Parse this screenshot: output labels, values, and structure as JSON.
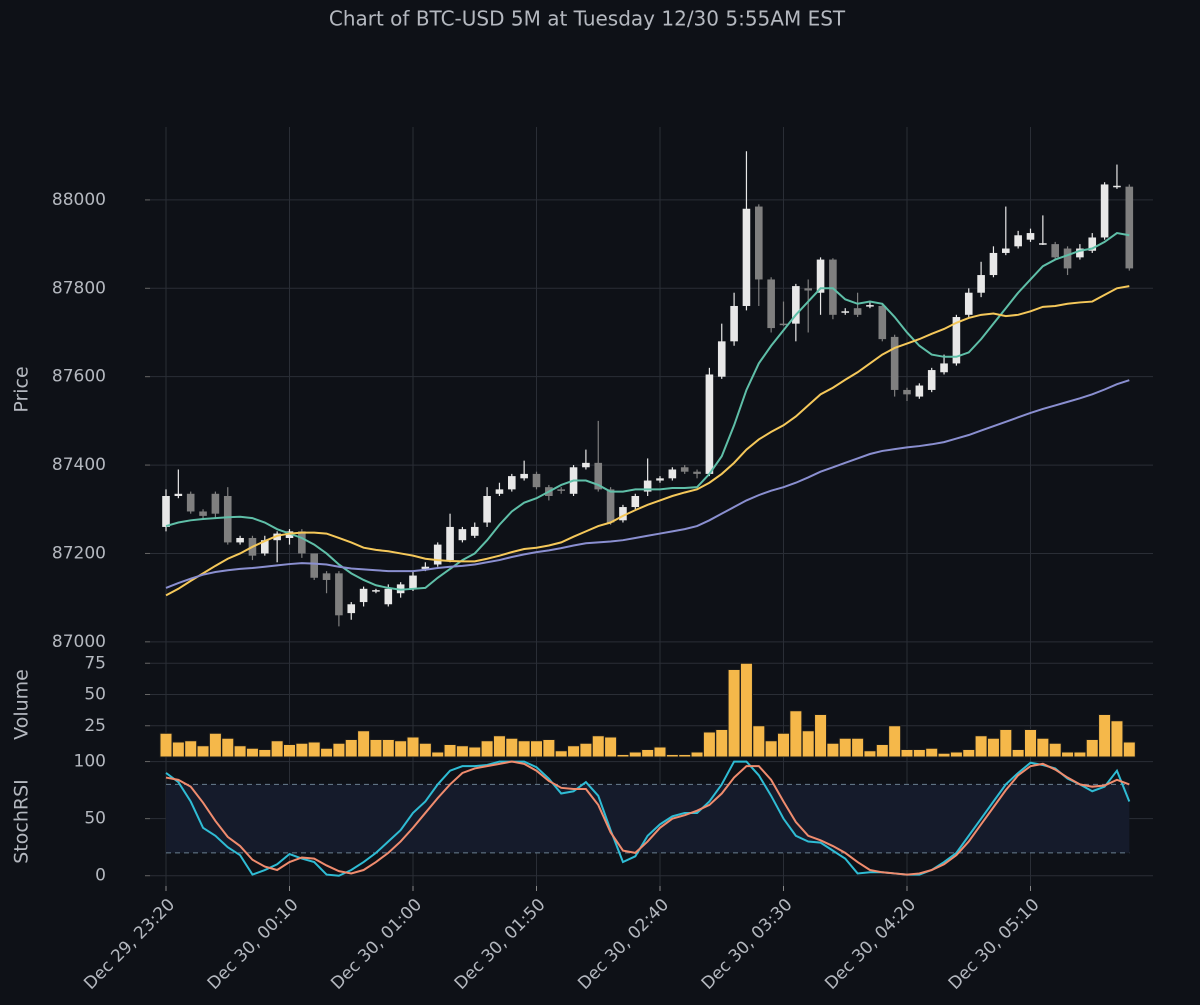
{
  "chart_data": [
    {
      "type": "candlestick",
      "title": "Chart of BTC-USD 5M at Tuesday 12/30 5:55AM EST",
      "ylabel": "Price",
      "ylim": [
        86977,
        88165
      ],
      "yticks": [
        87000,
        87200,
        87400,
        87600,
        87800,
        88000
      ],
      "grid": true,
      "up_color": "#e8e8e8",
      "down_color": "#7f7f7f",
      "open": [
        87260,
        87330,
        87335,
        87295,
        87335,
        87330,
        87225,
        87235,
        87200,
        87230,
        87235,
        87250,
        87200,
        87155,
        87155,
        87065,
        87090,
        87115,
        87085,
        87110,
        87120,
        87165,
        87175,
        87185,
        87230,
        87240,
        87270,
        87335,
        87345,
        87370,
        87380,
        87350,
        87345,
        87335,
        87395,
        87405,
        87345,
        87275,
        87305,
        87340,
        87365,
        87370,
        87395,
        87385,
        87380,
        87600,
        87680,
        87760,
        87985,
        87820,
        87720,
        87720,
        87800,
        87790,
        87865,
        87745,
        87755,
        87760,
        87760,
        87690,
        87570,
        87555,
        87570,
        87610,
        87630,
        87740,
        87790,
        87830,
        87880,
        87895,
        87910,
        87900,
        87900,
        87890,
        87870,
        87885,
        87915,
        88030,
        88030
      ],
      "high": [
        87345,
        87390,
        87340,
        87300,
        87340,
        87350,
        87240,
        87240,
        87240,
        87250,
        87255,
        87255,
        87200,
        87160,
        87160,
        87090,
        87125,
        87120,
        87130,
        87135,
        87160,
        87180,
        87225,
        87290,
        87260,
        87270,
        87350,
        87360,
        87380,
        87410,
        87385,
        87355,
        87350,
        87400,
        87435,
        87500,
        87350,
        87310,
        87335,
        87415,
        87375,
        87395,
        87400,
        87390,
        87620,
        87720,
        87790,
        88110,
        87990,
        87825,
        87770,
        87810,
        87820,
        87870,
        87868,
        87755,
        87790,
        87770,
        87765,
        87695,
        87575,
        87585,
        87620,
        87650,
        87740,
        87800,
        87860,
        87895,
        87985,
        87930,
        87935,
        87965,
        87905,
        87895,
        87900,
        87925,
        88040,
        88080,
        88035
      ],
      "low": [
        87250,
        87325,
        87290,
        87280,
        87280,
        87220,
        87220,
        87185,
        87195,
        87180,
        87220,
        87190,
        87140,
        87110,
        87035,
        87050,
        87080,
        87110,
        87080,
        87100,
        87115,
        87160,
        87170,
        87180,
        87225,
        87235,
        87260,
        87330,
        87340,
        87365,
        87345,
        87320,
        87335,
        87330,
        87390,
        87340,
        87265,
        87270,
        87300,
        87330,
        87360,
        87365,
        87380,
        87370,
        87375,
        87595,
        87670,
        87750,
        87760,
        87700,
        87715,
        87680,
        87700,
        87740,
        87730,
        87740,
        87735,
        87755,
        87680,
        87555,
        87545,
        87550,
        87565,
        87605,
        87625,
        87735,
        87780,
        87825,
        87875,
        87890,
        87905,
        87898,
        87865,
        87830,
        87865,
        87880,
        87910,
        88025,
        87840
      ],
      "close": [
        87330,
        87335,
        87295,
        87285,
        87290,
        87225,
        87235,
        87195,
        87230,
        87245,
        87250,
        87200,
        87145,
        87140,
        87060,
        87085,
        87120,
        87117,
        87120,
        87130,
        87150,
        87170,
        87220,
        87260,
        87255,
        87260,
        87330,
        87345,
        87375,
        87380,
        87350,
        87330,
        87342,
        87395,
        87405,
        87345,
        87270,
        87305,
        87330,
        87365,
        87370,
        87390,
        87385,
        87380,
        87605,
        87680,
        87760,
        87980,
        87820,
        87710,
        87718,
        87805,
        87795,
        87865,
        87740,
        87748,
        87740,
        87762,
        87685,
        87570,
        87560,
        87580,
        87615,
        87630,
        87735,
        87790,
        87830,
        87880,
        87890,
        87920,
        87925,
        87902,
        87870,
        87845,
        87890,
        87915,
        88035,
        88032,
        87845
      ],
      "series": [
        {
          "color": "#5fbfa8",
          "values": [
            87262,
            87270,
            87275,
            87278,
            87280,
            87282,
            87283,
            87280,
            87270,
            87255,
            87245,
            87235,
            87220,
            87200,
            87175,
            87155,
            87140,
            87128,
            87122,
            87118,
            87120,
            87122,
            87145,
            87165,
            87185,
            87200,
            87230,
            87265,
            87295,
            87315,
            87325,
            87340,
            87355,
            87365,
            87365,
            87355,
            87340,
            87340,
            87345,
            87345,
            87345,
            87348,
            87348,
            87350,
            87380,
            87420,
            87490,
            87570,
            87630,
            87670,
            87705,
            87740,
            87770,
            87800,
            87800,
            87775,
            87765,
            87770,
            87765,
            87735,
            87700,
            87670,
            87650,
            87645,
            87645,
            87655,
            87685,
            87720,
            87755,
            87790,
            87820,
            87850,
            87865,
            87875,
            87885,
            87890,
            87905,
            87925,
            87920
          ]
        },
        {
          "color": "#f5c85a",
          "values": [
            87105,
            87120,
            87138,
            87155,
            87172,
            87188,
            87200,
            87215,
            87228,
            87240,
            87245,
            87247,
            87247,
            87245,
            87235,
            87225,
            87213,
            87208,
            87205,
            87200,
            87195,
            87188,
            87185,
            87183,
            87182,
            87182,
            87188,
            87195,
            87203,
            87210,
            87213,
            87218,
            87225,
            87238,
            87250,
            87262,
            87270,
            87285,
            87298,
            87310,
            87320,
            87330,
            87338,
            87345,
            87360,
            87380,
            87405,
            87435,
            87458,
            87475,
            87490,
            87510,
            87535,
            87560,
            87575,
            87593,
            87610,
            87630,
            87650,
            87665,
            87675,
            87685,
            87697,
            87708,
            87722,
            87733,
            87740,
            87743,
            87737,
            87740,
            87748,
            87758,
            87760,
            87765,
            87768,
            87770,
            87785,
            87800,
            87805
          ]
        },
        {
          "color": "#8a8fd0",
          "values": [
            87122,
            87133,
            87143,
            87152,
            87158,
            87162,
            87165,
            87167,
            87170,
            87173,
            87176,
            87178,
            87177,
            87175,
            87170,
            87166,
            87164,
            87162,
            87160,
            87160,
            87160,
            87163,
            87167,
            87170,
            87172,
            87175,
            87180,
            87185,
            87192,
            87198,
            87203,
            87207,
            87212,
            87218,
            87223,
            87225,
            87227,
            87230,
            87235,
            87240,
            87245,
            87250,
            87255,
            87262,
            87275,
            87290,
            87305,
            87320,
            87332,
            87342,
            87350,
            87360,
            87372,
            87385,
            87395,
            87405,
            87415,
            87425,
            87432,
            87436,
            87440,
            87443,
            87447,
            87452,
            87460,
            87468,
            87478,
            87488,
            87498,
            87508,
            87518,
            87527,
            87535,
            87543,
            87551,
            87560,
            87571,
            87583,
            87592
          ]
        }
      ]
    },
    {
      "type": "bar",
      "ylabel": "Volume",
      "ylim": [
        0,
        84
      ],
      "yticks": [
        25,
        50,
        75
      ],
      "grid": true,
      "color": "#f5b84a",
      "values": [
        19,
        12,
        13,
        9,
        19,
        15,
        9,
        7,
        6,
        13,
        10,
        11,
        12,
        7,
        11,
        14,
        21,
        14,
        14,
        13,
        16,
        11,
        4,
        10,
        9,
        8,
        13,
        17,
        15,
        13,
        13,
        14,
        5,
        9,
        11,
        17,
        16,
        2,
        4,
        6,
        8,
        2,
        2,
        4,
        20,
        22,
        70,
        75,
        25,
        13,
        19,
        37,
        21,
        34,
        11,
        15,
        15,
        5,
        10,
        25,
        6,
        6,
        7,
        3,
        4,
        6,
        17,
        15,
        22,
        6,
        22,
        15,
        11,
        4,
        4,
        14,
        34,
        29,
        12
      ]
    },
    {
      "type": "line",
      "ylabel": "StochRSI",
      "ylim": [
        -9,
        104
      ],
      "yticks": [
        0,
        50,
        100
      ],
      "grid": true,
      "hlines": [
        20,
        80
      ],
      "band_color": "#151b2b",
      "categories": [
        "Dec 29, 23:20",
        null,
        null,
        null,
        null,
        null,
        null,
        null,
        null,
        null,
        "Dec 30, 00:10",
        null,
        null,
        null,
        null,
        null,
        null,
        null,
        null,
        null,
        "Dec 30, 01:00",
        null,
        null,
        null,
        null,
        null,
        null,
        null,
        null,
        null,
        "Dec 30, 01:50",
        null,
        null,
        null,
        null,
        null,
        null,
        null,
        null,
        null,
        "Dec 30, 02:40",
        null,
        null,
        null,
        null,
        null,
        null,
        null,
        null,
        null,
        "Dec 30, 03:30",
        null,
        null,
        null,
        null,
        null,
        null,
        null,
        null,
        null,
        "Dec 30, 04:20",
        null,
        null,
        null,
        null,
        null,
        null,
        null,
        null,
        null,
        "Dec 30, 05:10",
        null,
        null,
        null,
        null,
        null,
        null,
        null,
        null
      ],
      "series": [
        {
          "color": "#2fbcd4",
          "values": [
            90,
            82,
            65,
            42,
            35,
            25,
            18,
            1,
            5,
            10,
            19,
            15,
            12,
            1,
            0,
            5,
            12,
            20,
            30,
            40,
            55,
            65,
            80,
            92,
            96,
            96,
            97,
            100,
            100,
            100,
            95,
            85,
            72,
            74,
            82,
            70,
            40,
            12,
            17,
            35,
            45,
            52,
            55,
            55,
            65,
            80,
            100,
            100,
            88,
            70,
            50,
            35,
            30,
            29,
            22,
            15,
            2,
            3,
            3,
            2,
            1,
            1,
            5,
            12,
            20,
            35,
            50,
            65,
            80,
            90,
            99,
            97,
            94,
            85,
            80,
            74,
            78,
            92,
            65
          ]
        },
        {
          "color": "#f08c6e",
          "values": [
            86,
            84,
            78,
            64,
            48,
            34,
            26,
            14,
            8,
            5,
            12,
            16,
            15,
            9,
            4,
            2,
            5,
            12,
            20,
            30,
            42,
            55,
            68,
            80,
            90,
            94,
            96,
            98,
            100,
            98,
            92,
            83,
            77,
            76,
            76,
            62,
            38,
            22,
            20,
            30,
            42,
            50,
            53,
            57,
            62,
            72,
            86,
            96,
            96,
            84,
            65,
            47,
            35,
            31,
            26,
            20,
            12,
            5,
            3,
            2,
            1,
            2,
            5,
            10,
            18,
            30,
            45,
            60,
            75,
            88,
            96,
            98,
            93,
            86,
            80,
            78,
            79,
            84,
            80
          ]
        }
      ]
    }
  ]
}
